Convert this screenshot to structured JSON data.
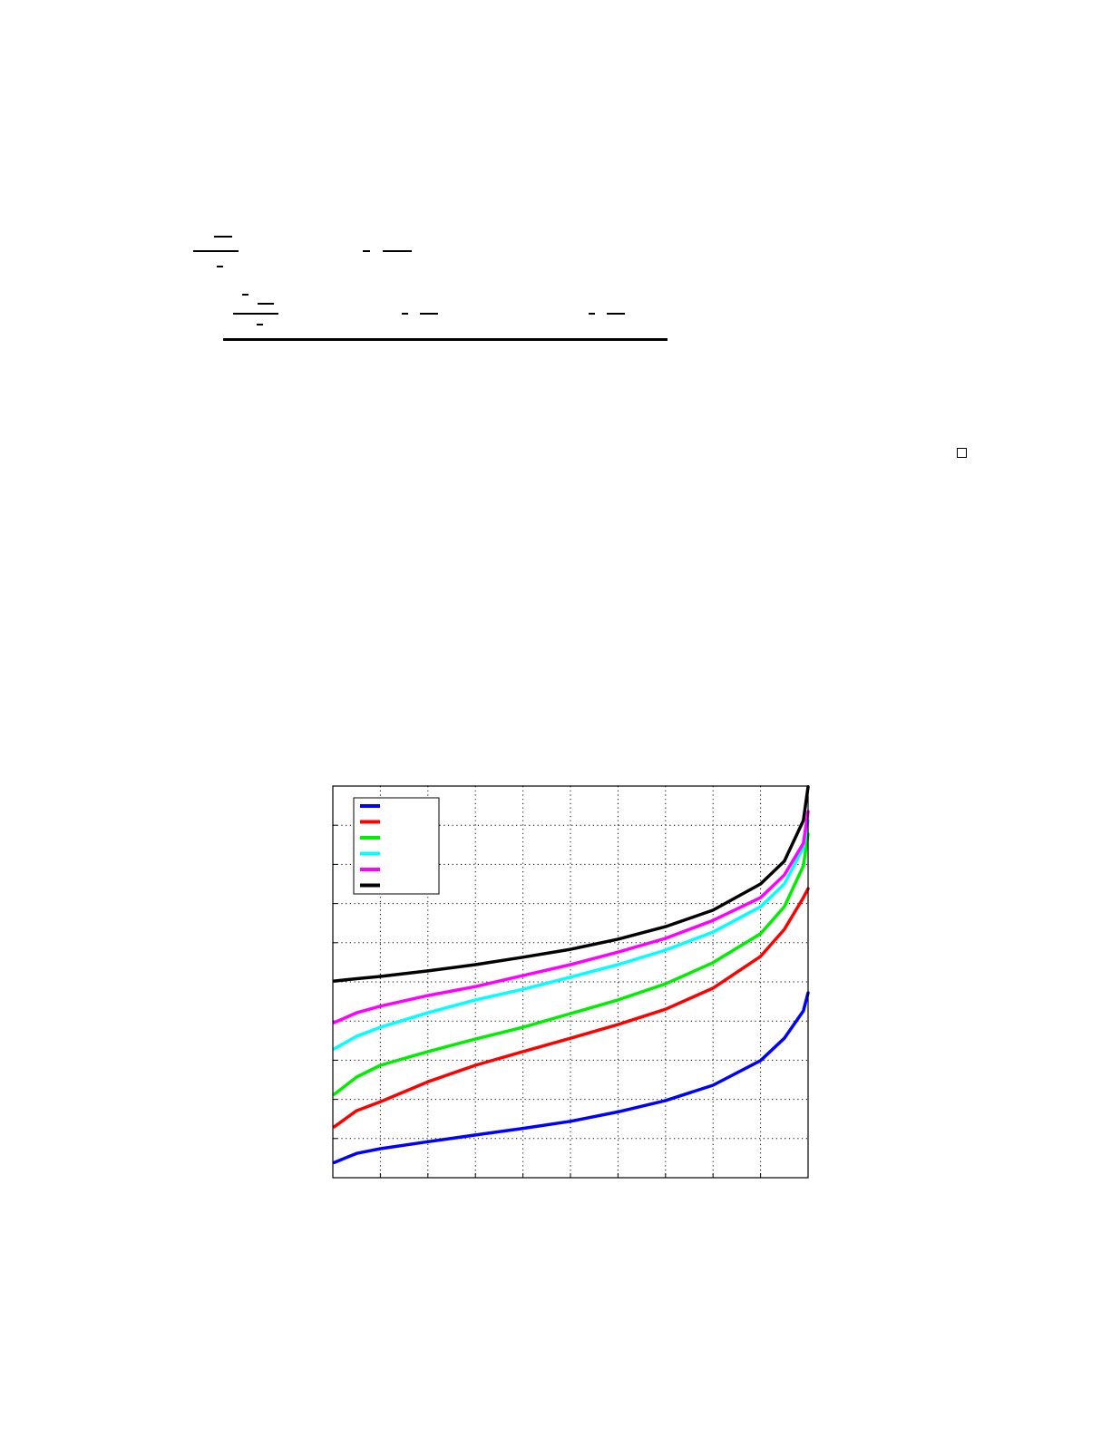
{
  "page": {
    "equation_marks": "fraction-bars",
    "end_of_proof_symbol": "qed-square"
  },
  "chart_data": {
    "type": "line",
    "title": "",
    "xlabel": "",
    "ylabel": "",
    "xlim": [
      0,
      10
    ],
    "ylim": [
      0,
      10
    ],
    "grid": true,
    "grid_style": "dotted",
    "legend_placement": "top-left",
    "x": [
      0.03,
      0.5,
      1,
      2,
      3,
      4,
      5,
      6,
      7,
      8,
      9,
      9.5,
      9.9,
      10
    ],
    "series": [
      {
        "color": "#0000ff",
        "values": [
          0.39,
          0.62,
          0.74,
          0.92,
          1.09,
          1.26,
          1.44,
          1.68,
          1.97,
          2.36,
          2.99,
          3.56,
          4.26,
          4.72
        ]
      },
      {
        "color": "#ff0000",
        "values": [
          1.3,
          1.71,
          1.94,
          2.45,
          2.87,
          3.22,
          3.56,
          3.91,
          4.3,
          4.84,
          5.65,
          6.34,
          7.15,
          7.38
        ]
      },
      {
        "color": "#00ee00",
        "values": [
          2.13,
          2.57,
          2.87,
          3.22,
          3.54,
          3.84,
          4.19,
          4.54,
          4.95,
          5.49,
          6.23,
          6.92,
          7.96,
          8.77
        ]
      },
      {
        "color": "#00ffff",
        "values": [
          3.29,
          3.61,
          3.84,
          4.21,
          4.54,
          4.81,
          5.12,
          5.44,
          5.81,
          6.27,
          6.92,
          7.5,
          8.43,
          9.12
        ]
      },
      {
        "color": "#ff00ff",
        "values": [
          3.96,
          4.21,
          4.38,
          4.65,
          4.88,
          5.16,
          5.44,
          5.76,
          6.11,
          6.57,
          7.15,
          7.73,
          8.54,
          9.35
        ]
      },
      {
        "color": "#000000",
        "values": [
          5.02,
          5.08,
          5.14,
          5.28,
          5.44,
          5.63,
          5.83,
          6.09,
          6.41,
          6.83,
          7.5,
          8.08,
          9.12,
          9.98
        ]
      }
    ]
  }
}
